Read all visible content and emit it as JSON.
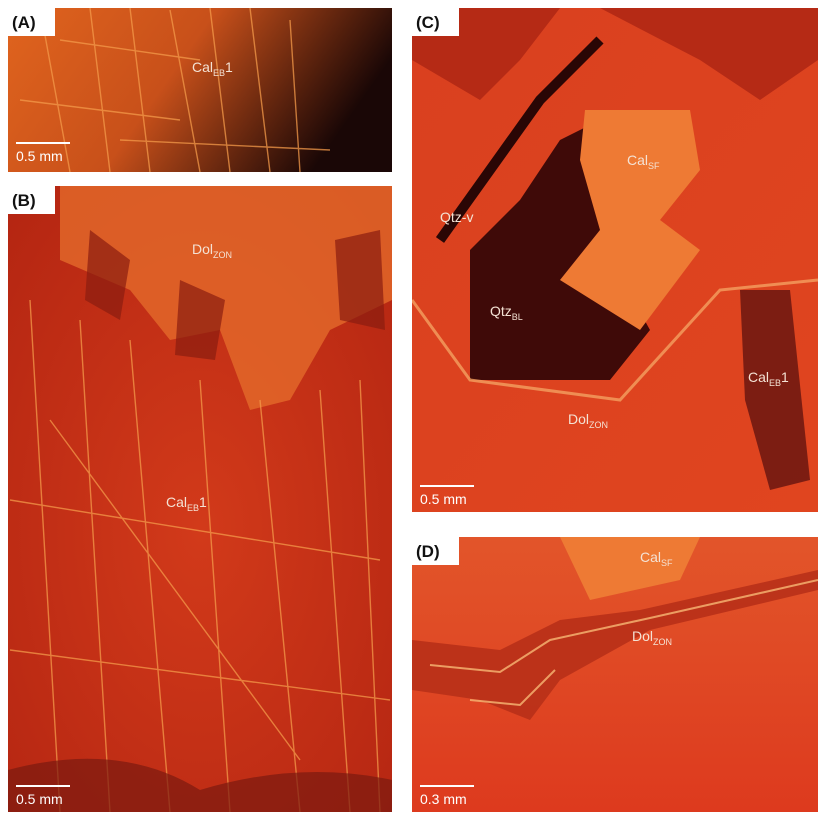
{
  "panels": [
    {
      "label": "(A)",
      "scale_bar": "0.5 mm",
      "annotations": [
        {
          "text": "Cal",
          "sub": "EB",
          "suffix": "1"
        }
      ]
    },
    {
      "label": "(B)",
      "scale_bar": "0.5 mm",
      "annotations": [
        {
          "text": "Dol",
          "sub": "ZON"
        },
        {
          "text": "Cal",
          "sub": "EB",
          "suffix": "1"
        }
      ]
    },
    {
      "label": "(C)",
      "scale_bar": "0.5 mm",
      "annotations": [
        {
          "text": "Cal",
          "sub": "SF"
        },
        {
          "text": "Qtz-v"
        },
        {
          "text": "Qtz",
          "sub": "BL"
        },
        {
          "text": "Cal",
          "sub": "EB",
          "suffix": "1"
        },
        {
          "text": "Dol",
          "sub": "ZON"
        }
      ]
    },
    {
      "label": "(D)",
      "scale_bar": "0.3 mm",
      "annotations": [
        {
          "text": "Cal",
          "sub": "SF"
        },
        {
          "text": "Dol",
          "sub": "ZON"
        }
      ]
    }
  ]
}
